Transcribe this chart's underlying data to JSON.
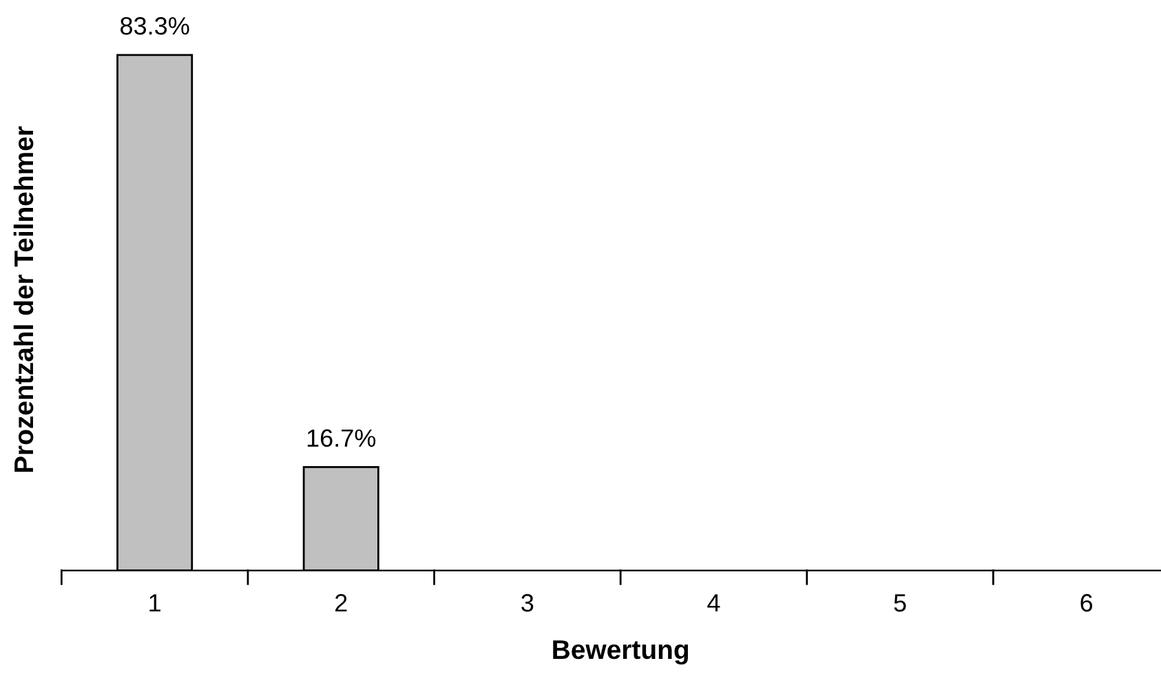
{
  "chart_data": {
    "type": "bar",
    "xlabel": "Bewertung",
    "ylabel": "Prozentzahl der Teilnehmer",
    "categories": [
      "1",
      "2",
      "3",
      "4",
      "5",
      "6"
    ],
    "values": [
      83.3,
      16.7,
      0,
      0,
      0,
      0
    ],
    "value_labels": [
      "83.3%",
      "16.7%",
      null,
      null,
      null,
      null
    ],
    "color": "#c0c0c0",
    "grid": false,
    "legend": false
  }
}
